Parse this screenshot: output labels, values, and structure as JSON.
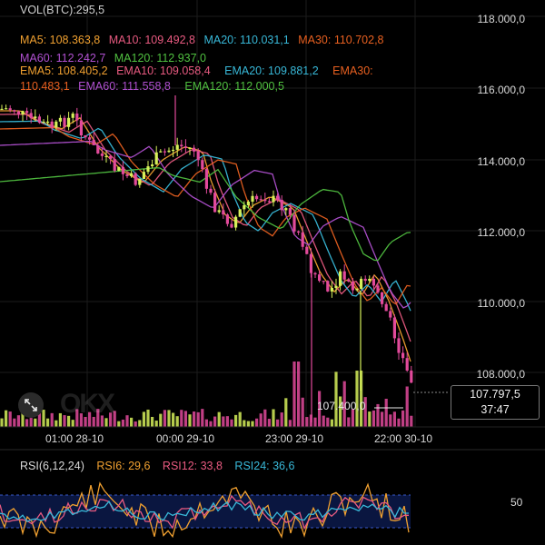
{
  "colors": {
    "background": "#000000",
    "bull": "#d6f05a",
    "bear": "#e24a9b",
    "ma5": "#f0a030",
    "ma10": "#e85a80",
    "ma20": "#38b8d8",
    "ma30": "#e86020",
    "ma60": "#b050d0",
    "ma120": "#50c040",
    "rsi6": "#f0a030",
    "rsi12": "#e85a80",
    "rsi24": "#38b8d8"
  },
  "legend": {
    "vol": "VOL(BTC):295,5",
    "ma5": "MA5: 108.363,8",
    "ma10": "MA10: 109.492,8",
    "ma20": "MA20: 110.031,1",
    "ma30": "MA30: 110.702,8",
    "ma60": "MA60: 112.242,7",
    "ma120": "MA120: 112.937,0",
    "ema5": "EMA5: 108.405,2",
    "ema10": "EMA10: 109.058,4",
    "ema20": "EMA20: 109.881,2",
    "ema30": "EMA30:",
    "ema30_value": "110.483,1",
    "ema60": "EMA60: 111.558,8",
    "ema120": "EMA120: 112.000,5"
  },
  "y_axis": [
    "118.000,0",
    "116.000,0",
    "114.000,0",
    "112.000,0",
    "110.000,0",
    "108.000,0"
  ],
  "x_axis": [
    "01:00 28-10",
    "00:00 29-10",
    "23:00 29-10",
    "22:00 30-10"
  ],
  "last_price": "107.797,5",
  "countdown": "37:47",
  "min_price_label": "107.400,0",
  "watermark": "OKX",
  "rsi": {
    "title": "RSI(6,12,24)",
    "rsi6": "RSI6: 29,6",
    "rsi12": "RSI12: 33,8",
    "rsi24": "RSI24: 36,6",
    "level_50": "50"
  },
  "icons": {
    "expand": "expand-icon"
  }
}
